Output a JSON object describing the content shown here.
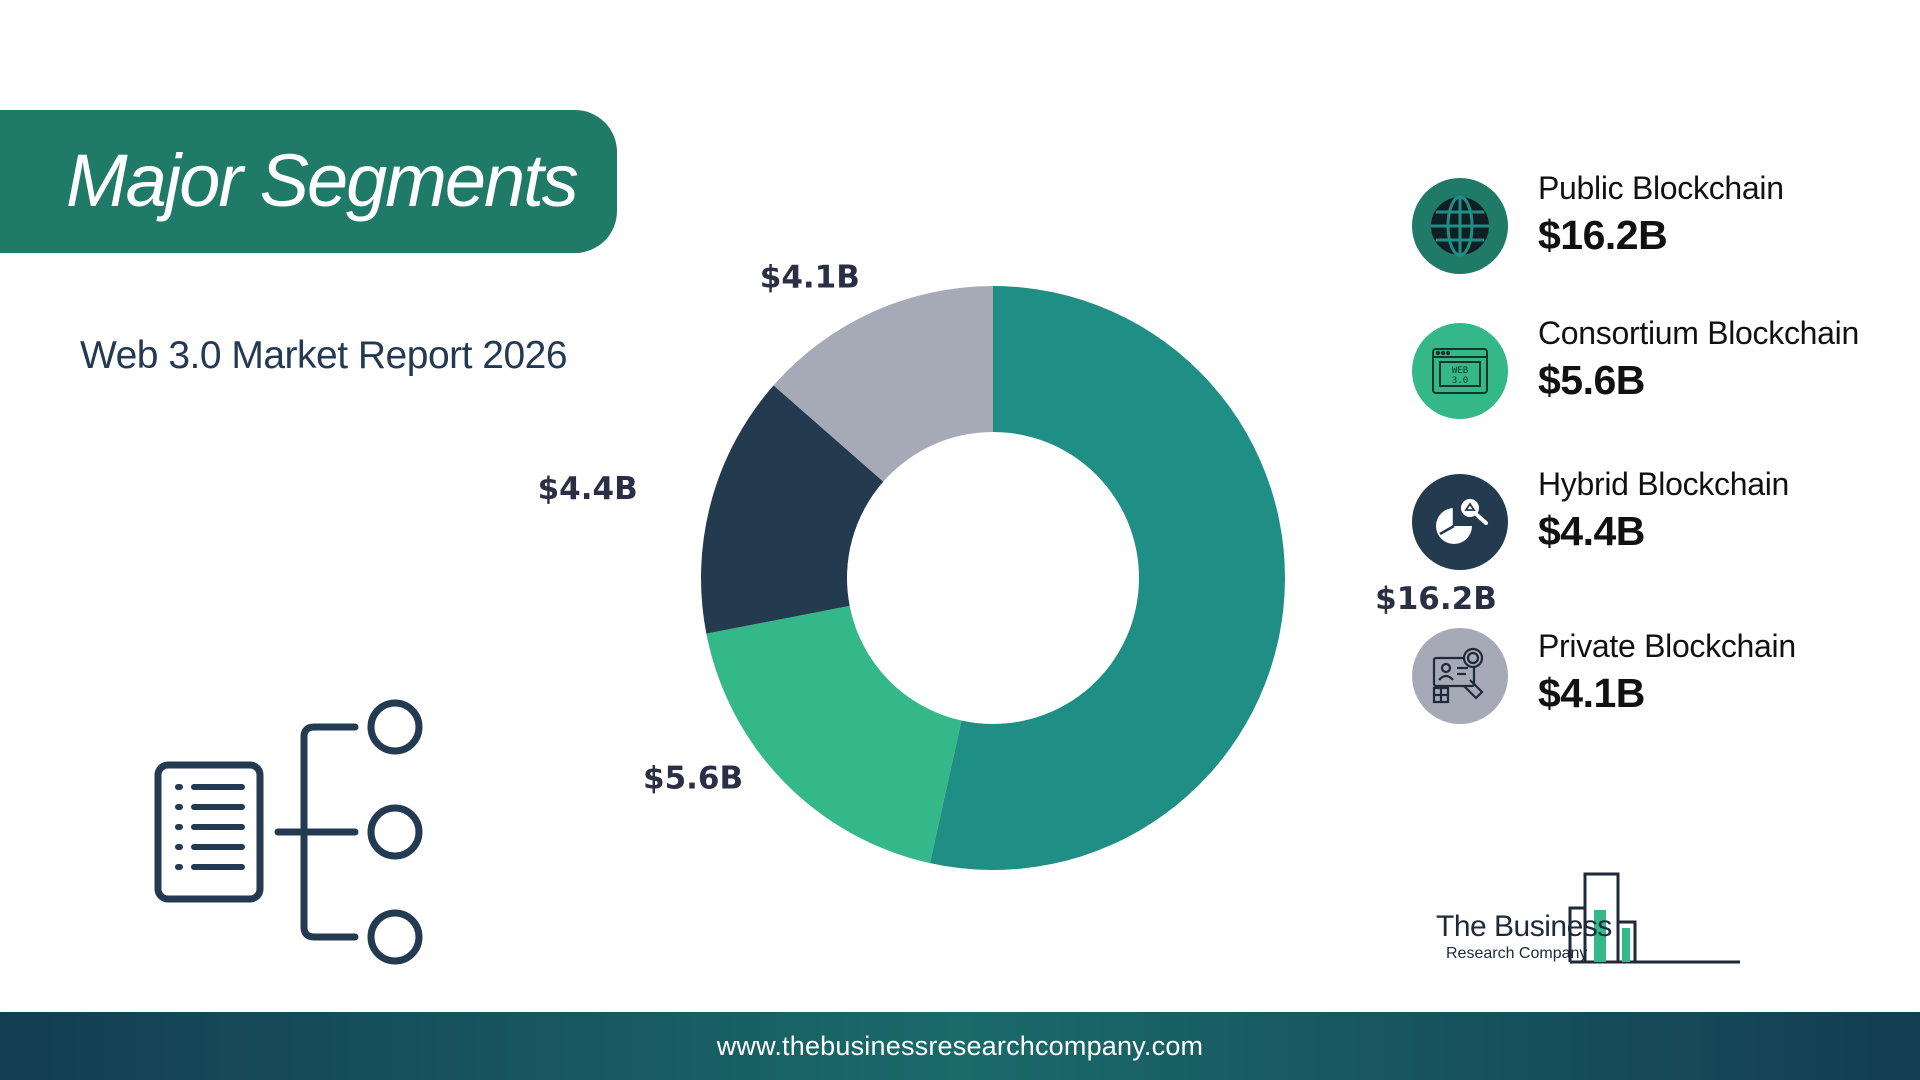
{
  "header": {
    "title": "Major Segments",
    "subtitle": "Web 3.0 Market Report 2026"
  },
  "chart_data": {
    "type": "pie",
    "title": "",
    "donut": true,
    "categories": [
      "Public Blockchain",
      "Consortium Blockchain",
      "Hybrid Blockchain",
      "Private Blockchain"
    ],
    "values": [
      16.2,
      5.6,
      4.4,
      4.1
    ],
    "labels": [
      "$16.2B",
      "$5.6B",
      "$4.4B",
      "$4.1B"
    ],
    "unit": "$B",
    "colors": [
      "#1f8f86",
      "#34b889",
      "#243a4f",
      "#a6aab6"
    ]
  },
  "legend": {
    "items": [
      {
        "name": "Public Blockchain",
        "value": "$16.2B",
        "icon": "globe-icon",
        "color": "#1f8f86"
      },
      {
        "name": "Consortium Blockchain",
        "value": "$5.6B",
        "icon": "web3-browser-icon",
        "color": "#34b889"
      },
      {
        "name": "Hybrid Blockchain",
        "value": "$4.4B",
        "icon": "pie-search-icon",
        "color": "#243a4f"
      },
      {
        "name": "Private Blockchain",
        "value": "$4.1B",
        "icon": "analytics-search-icon",
        "color": "#a6aab6"
      }
    ]
  },
  "logo": {
    "line1": "The Business",
    "line2": "Research Company"
  },
  "footer": {
    "url": "www.thebusinessresearchcompany.com"
  }
}
